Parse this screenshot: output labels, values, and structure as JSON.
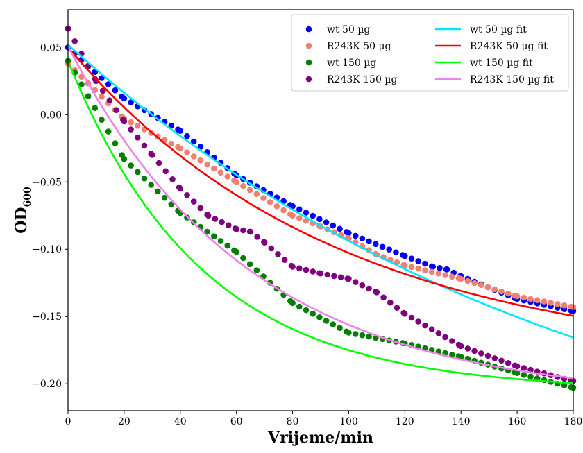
{
  "chart_data": {
    "type": "scatter",
    "title": "",
    "xlabel": "Vrijeme/min",
    "ylabel_main": "OD",
    "ylabel_sub": "600",
    "xlim": [
      0,
      180
    ],
    "ylim": [
      -0.22,
      0.078
    ],
    "x_ticks": [
      0,
      20,
      40,
      60,
      80,
      100,
      120,
      140,
      160,
      180
    ],
    "x_tick_labels": [
      "0",
      "20",
      "40",
      "60",
      "80",
      "100",
      "120",
      "140",
      "160",
      "180"
    ],
    "y_ticks": [
      0.05,
      0.0,
      -0.05,
      -0.1,
      -0.15,
      -0.2
    ],
    "y_tick_labels": [
      "0.05",
      "0.00",
      "−0.05",
      "−0.10",
      "−0.15",
      "−0.20"
    ],
    "grid": false,
    "legend_position": "top-right",
    "scatter_series": [
      {
        "name": "wt 50 µg",
        "color": "#0000ff",
        "x": [
          0,
          20,
          40,
          60,
          80,
          100,
          120,
          130,
          135,
          140,
          160,
          180
        ],
        "y": [
          0.05,
          0.012,
          -0.012,
          -0.045,
          -0.068,
          -0.088,
          -0.105,
          -0.113,
          -0.115,
          -0.12,
          -0.137,
          -0.146
        ]
      },
      {
        "name": "R243K 50 µg",
        "color": "#f08070",
        "x": [
          0,
          20,
          40,
          60,
          80,
          90,
          100,
          110,
          120,
          140,
          160,
          180
        ],
        "y": [
          0.038,
          -0.003,
          -0.025,
          -0.05,
          -0.075,
          -0.083,
          -0.092,
          -0.104,
          -0.112,
          -0.122,
          -0.135,
          -0.143
        ]
      },
      {
        "name": "wt 150 µg",
        "color": "#007f00",
        "x": [
          0,
          20,
          40,
          60,
          80,
          100,
          120,
          140,
          160,
          180
        ],
        "y": [
          0.04,
          -0.033,
          -0.073,
          -0.102,
          -0.14,
          -0.162,
          -0.17,
          -0.18,
          -0.192,
          -0.203
        ]
      },
      {
        "name": "R243K 150 µg",
        "color": "#7f007f",
        "x": [
          0,
          10,
          20,
          30,
          40,
          50,
          60,
          65,
          70,
          80,
          90,
          100,
          110,
          120,
          140,
          160,
          180
        ],
        "y": [
          0.064,
          0.025,
          -0.005,
          -0.03,
          -0.055,
          -0.075,
          -0.085,
          -0.087,
          -0.095,
          -0.113,
          -0.118,
          -0.122,
          -0.132,
          -0.148,
          -0.172,
          -0.187,
          -0.198
        ]
      }
    ],
    "fit_series": [
      {
        "name": "wt 50 µg fit",
        "color": "#00e5ff",
        "model": {
          "ainf": -0.3,
          "b": 0.352,
          "k": 0.00535
        }
      },
      {
        "name": "R243K 50 µg fit",
        "color": "#ff0000",
        "model": {
          "ainf": -0.185,
          "b": 0.235,
          "k": 0.0105
        }
      },
      {
        "name": "wt 150 µg fit",
        "color": "#00ff00",
        "model": {
          "ainf": -0.205,
          "b": 0.245,
          "k": 0.021
        }
      },
      {
        "name": "R243K 150 µg fit",
        "color": "#ee82ee",
        "model": {
          "ainf": -0.212,
          "b": 0.263,
          "k": 0.0155
        }
      }
    ]
  }
}
